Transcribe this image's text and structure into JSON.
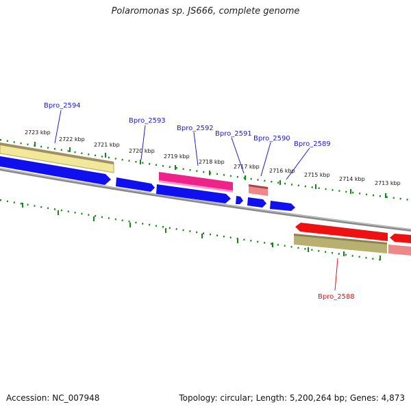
{
  "title": "Polaromonas sp. JS666, complete genome",
  "accession": "Accession: NC_007948",
  "summary": "Topology: circular; Length: 5,200,264 bp; Genes: 4,873",
  "ticks": [
    "2723 kbp",
    "2722 kbp",
    "2721 kbp",
    "2720 kbp",
    "2719 kbp",
    "2718 kbp",
    "2717 kbp",
    "2716 kbp",
    "2715 kbp",
    "2714 kbp",
    "2713 kbp"
  ],
  "gene_labels": [
    {
      "name": "Bpro_2594",
      "strand": "forward",
      "color": "#1a1acd"
    },
    {
      "name": "Bpro_2593",
      "strand": "forward",
      "color": "#1a1acd"
    },
    {
      "name": "Bpro_2592",
      "strand": "forward",
      "color": "#1a1acd"
    },
    {
      "name": "Bpro_2591",
      "strand": "forward",
      "color": "#1a1acd"
    },
    {
      "name": "Bpro_2590",
      "strand": "forward",
      "color": "#1a1acd"
    },
    {
      "name": "Bpro_2589",
      "strand": "forward",
      "color": "#1a1acd"
    },
    {
      "name": "Bpro_2588",
      "strand": "reverse",
      "color": "#dd1111"
    }
  ],
  "colors": {
    "cds_forward": "#1010ee",
    "cds_reverse": "#ee1111",
    "highlight_pink": "#ee2288",
    "highlight_yellow": "#f2e89a",
    "highlight_olive": "#b8b070",
    "highlight_salmon": "#ee8888",
    "backbone": "#888888",
    "ruler": "#118811"
  }
}
